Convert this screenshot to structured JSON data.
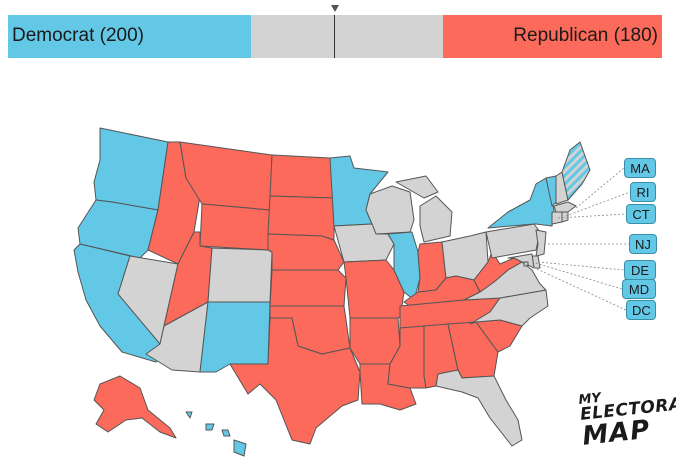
{
  "tally": {
    "democrat_label": "Democrat (200)",
    "republican_label": "Republican (180)",
    "democrat_votes": 200,
    "republican_votes": 180,
    "total_votes": 538
  },
  "colors": {
    "democrat": "#63c8e6",
    "republican": "#fb6a5b",
    "undecided": "#d3d3d3",
    "split": "#a9dbe8",
    "state_border": "#555555"
  },
  "callouts": [
    {
      "abbr": "MA",
      "party": "democrat"
    },
    {
      "abbr": "RI",
      "party": "democrat"
    },
    {
      "abbr": "CT",
      "party": "democrat"
    },
    {
      "abbr": "NJ",
      "party": "democrat"
    },
    {
      "abbr": "DE",
      "party": "democrat"
    },
    {
      "abbr": "MD",
      "party": "democrat"
    },
    {
      "abbr": "DC",
      "party": "democrat"
    }
  ],
  "states": [
    {
      "abbr": "WA",
      "party": "democrat"
    },
    {
      "abbr": "OR",
      "party": "democrat"
    },
    {
      "abbr": "CA",
      "party": "democrat"
    },
    {
      "abbr": "NV",
      "party": "undecided"
    },
    {
      "abbr": "ID",
      "party": "republican"
    },
    {
      "abbr": "MT",
      "party": "republican"
    },
    {
      "abbr": "WY",
      "party": "republican"
    },
    {
      "abbr": "UT",
      "party": "republican"
    },
    {
      "abbr": "AZ",
      "party": "undecided"
    },
    {
      "abbr": "CO",
      "party": "undecided"
    },
    {
      "abbr": "NM",
      "party": "democrat"
    },
    {
      "abbr": "ND",
      "party": "republican"
    },
    {
      "abbr": "SD",
      "party": "republican"
    },
    {
      "abbr": "NE",
      "party": "republican"
    },
    {
      "abbr": "KS",
      "party": "republican"
    },
    {
      "abbr": "OK",
      "party": "republican"
    },
    {
      "abbr": "TX",
      "party": "republican"
    },
    {
      "abbr": "MN",
      "party": "democrat"
    },
    {
      "abbr": "IA",
      "party": "undecided"
    },
    {
      "abbr": "MO",
      "party": "republican"
    },
    {
      "abbr": "AR",
      "party": "republican"
    },
    {
      "abbr": "LA",
      "party": "republican"
    },
    {
      "abbr": "WI",
      "party": "undecided"
    },
    {
      "abbr": "IL",
      "party": "democrat"
    },
    {
      "abbr": "MI",
      "party": "undecided"
    },
    {
      "abbr": "IN",
      "party": "republican"
    },
    {
      "abbr": "OH",
      "party": "undecided"
    },
    {
      "abbr": "KY",
      "party": "republican"
    },
    {
      "abbr": "TN",
      "party": "republican"
    },
    {
      "abbr": "MS",
      "party": "republican"
    },
    {
      "abbr": "AL",
      "party": "republican"
    },
    {
      "abbr": "GA",
      "party": "republican"
    },
    {
      "abbr": "FL",
      "party": "undecided"
    },
    {
      "abbr": "SC",
      "party": "republican"
    },
    {
      "abbr": "NC",
      "party": "undecided"
    },
    {
      "abbr": "VA",
      "party": "undecided"
    },
    {
      "abbr": "WV",
      "party": "republican"
    },
    {
      "abbr": "PA",
      "party": "undecided"
    },
    {
      "abbr": "NY",
      "party": "democrat"
    },
    {
      "abbr": "VT",
      "party": "democrat"
    },
    {
      "abbr": "NH",
      "party": "undecided"
    },
    {
      "abbr": "ME",
      "party": "split"
    },
    {
      "abbr": "AK",
      "party": "republican"
    },
    {
      "abbr": "HI",
      "party": "democrat"
    }
  ],
  "logo": {
    "line1": "MY",
    "line2": "ELECTORAL",
    "line3": "MAP"
  }
}
